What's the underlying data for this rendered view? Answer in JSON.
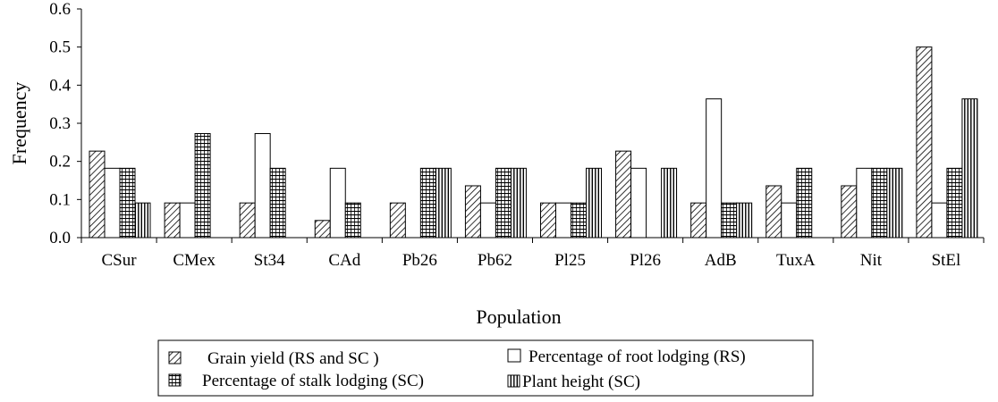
{
  "chart_data": {
    "type": "bar",
    "xlabel": "Population",
    "ylabel": "Frequency",
    "ylim": [
      0,
      0.6
    ],
    "yticks": [
      "0.0",
      "0.1",
      "0.2",
      "0.3",
      "0.4",
      "0.5",
      "0.6"
    ],
    "categories": [
      "CSur",
      "CMex",
      "St34",
      "CAd",
      "Pb26",
      "Pb62",
      "Pl25",
      "Pl26",
      "AdB",
      "TuxA",
      "Nit",
      "StEl"
    ],
    "series": [
      {
        "name": "Grain yield (RS and SC )",
        "pattern": "diagonal-hatch",
        "values": [
          0.227,
          0.091,
          0.091,
          0.045,
          0.091,
          0.136,
          0.091,
          0.227,
          0.091,
          0.136,
          0.136,
          0.5
        ]
      },
      {
        "name": "Percentage of root lodging (RS)",
        "pattern": "white",
        "values": [
          0.182,
          0.091,
          0.273,
          0.182,
          0,
          0.091,
          0.091,
          0.182,
          0.364,
          0.091,
          0.182,
          0.091
        ]
      },
      {
        "name": "Percentage of stalk lodging (SC)",
        "pattern": "grid-hatch",
        "values": [
          0.182,
          0.273,
          0.182,
          0.091,
          0.182,
          0.182,
          0.091,
          0,
          0.091,
          0.182,
          0.182,
          0.182
        ]
      },
      {
        "name": "Plant height (SC)",
        "pattern": "vertical-hatch",
        "values": [
          0.091,
          0,
          0,
          0,
          0.182,
          0.182,
          0.182,
          0.182,
          0.091,
          0,
          0.182,
          0.364
        ]
      }
    ],
    "legend": "bottom-center",
    "grid": false
  }
}
